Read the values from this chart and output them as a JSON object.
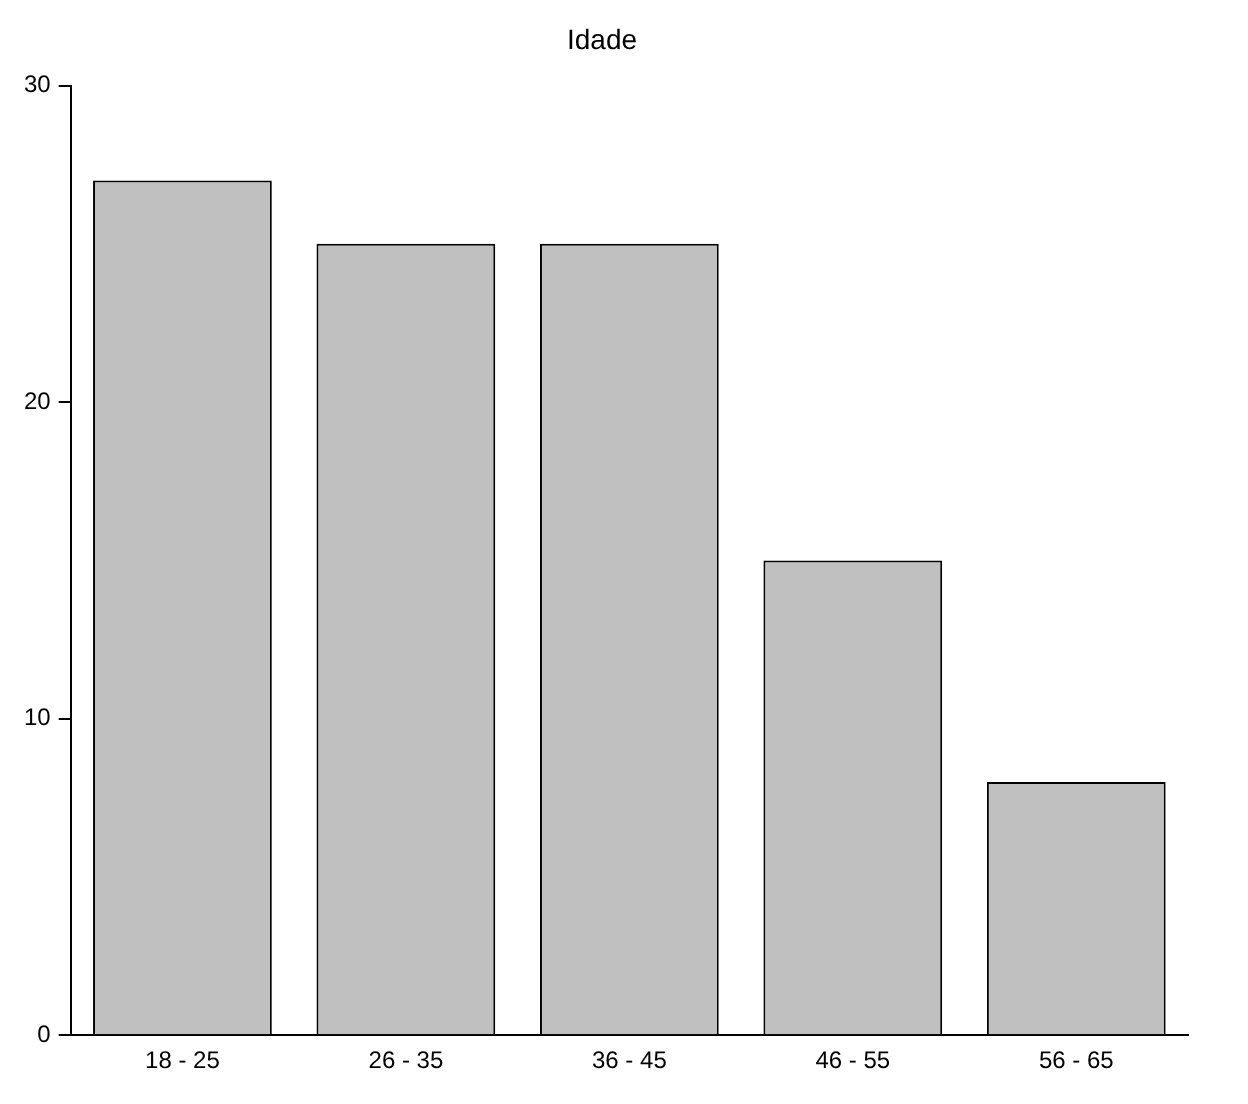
{
  "chart_data": {
    "type": "bar",
    "title": "Idade",
    "categories": [
      "18 - 25",
      "26 - 35",
      "36 - 45",
      "46 - 55",
      "56 - 65"
    ],
    "values": [
      27,
      25,
      25,
      15,
      8
    ],
    "color": "#c0c0c0",
    "ylim": [
      0,
      30
    ],
    "yticks": [
      0,
      10,
      20,
      30
    ],
    "grid": false,
    "legend": false
  }
}
